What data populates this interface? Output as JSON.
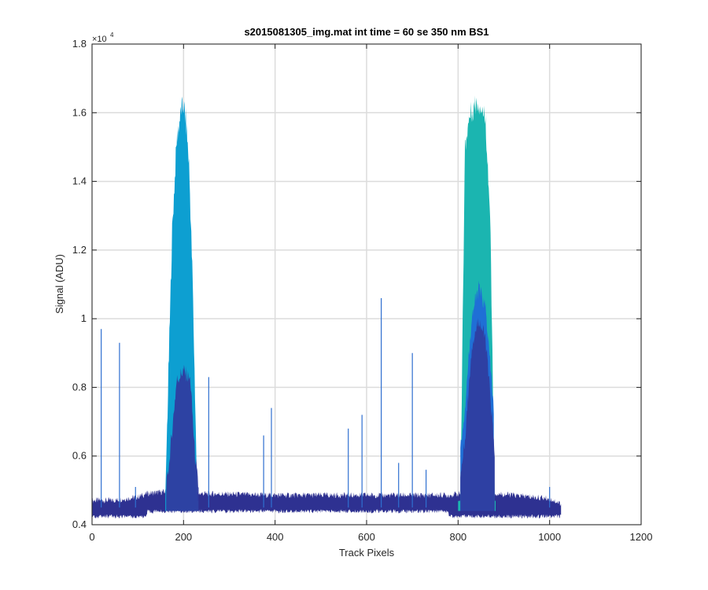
{
  "chart_data": {
    "type": "area",
    "title": "s2015081305_img.mat int time = 60 se  350 nm BS1",
    "xlabel": "Track Pixels",
    "ylabel": "Signal (ADU)",
    "y_exponent_label": "×10",
    "y_exponent_power": "4",
    "xlim": [
      0,
      1200
    ],
    "ylim": [
      4000,
      18000
    ],
    "xticks": [
      0,
      200,
      400,
      600,
      800,
      1000,
      1200
    ],
    "xtick_labels": [
      "0",
      "200",
      "400",
      "600",
      "800",
      "1000",
      "1200"
    ],
    "yticks": [
      4000,
      6000,
      8000,
      10000,
      12000,
      14000,
      16000,
      18000
    ],
    "ytick_labels": [
      "0.4",
      "0.6",
      "0.8",
      "1",
      "1.2",
      "1.4",
      "1.6",
      "1.8"
    ],
    "grid": true,
    "colors": {
      "background_band": "#2e3191",
      "mid_band": "#1f6fd6",
      "upper_band_left": "#0d9fd1",
      "upper_band_right": "#1bb5b0",
      "dark_peak": "#2f3da0"
    },
    "series": [
      {
        "values_description_type": "envelope_max",
        "x": [
          0,
          50,
          100,
          120,
          160,
          175,
          185,
          195,
          200,
          205,
          212,
          220,
          230,
          400,
          600,
          780,
          805,
          815,
          825,
          840,
          850,
          860,
          870,
          880,
          1000,
          1025
        ],
        "y": [
          4500,
          4500,
          4600,
          4700,
          4750,
          12500,
          15200,
          16100,
          16200,
          15800,
          14500,
          11000,
          4700,
          4650,
          4650,
          4650,
          4700,
          15000,
          15900,
          16300,
          16200,
          15800,
          13000,
          4700,
          4550,
          4400
        ]
      },
      {
        "values_description_type": "dark_core_max",
        "x": [
          160,
          170,
          185,
          200,
          215,
          225,
          235,
          800,
          815,
          830,
          845,
          860,
          875,
          885
        ],
        "y": [
          4800,
          6000,
          8200,
          8500,
          8200,
          6000,
          4800,
          4800,
          6500,
          9200,
          10000,
          9400,
          7000,
          4800
        ]
      }
    ],
    "spikes": [
      {
        "x": 20,
        "y": 9700
      },
      {
        "x": 60,
        "y": 9300
      },
      {
        "x": 95,
        "y": 5100
      },
      {
        "x": 255,
        "y": 8300
      },
      {
        "x": 375,
        "y": 6600
      },
      {
        "x": 392,
        "y": 7400
      },
      {
        "x": 560,
        "y": 6800
      },
      {
        "x": 590,
        "y": 7200
      },
      {
        "x": 632,
        "y": 10600
      },
      {
        "x": 670,
        "y": 5800
      },
      {
        "x": 700,
        "y": 9000
      },
      {
        "x": 730,
        "y": 5600
      },
      {
        "x": 1000,
        "y": 5100
      }
    ]
  }
}
